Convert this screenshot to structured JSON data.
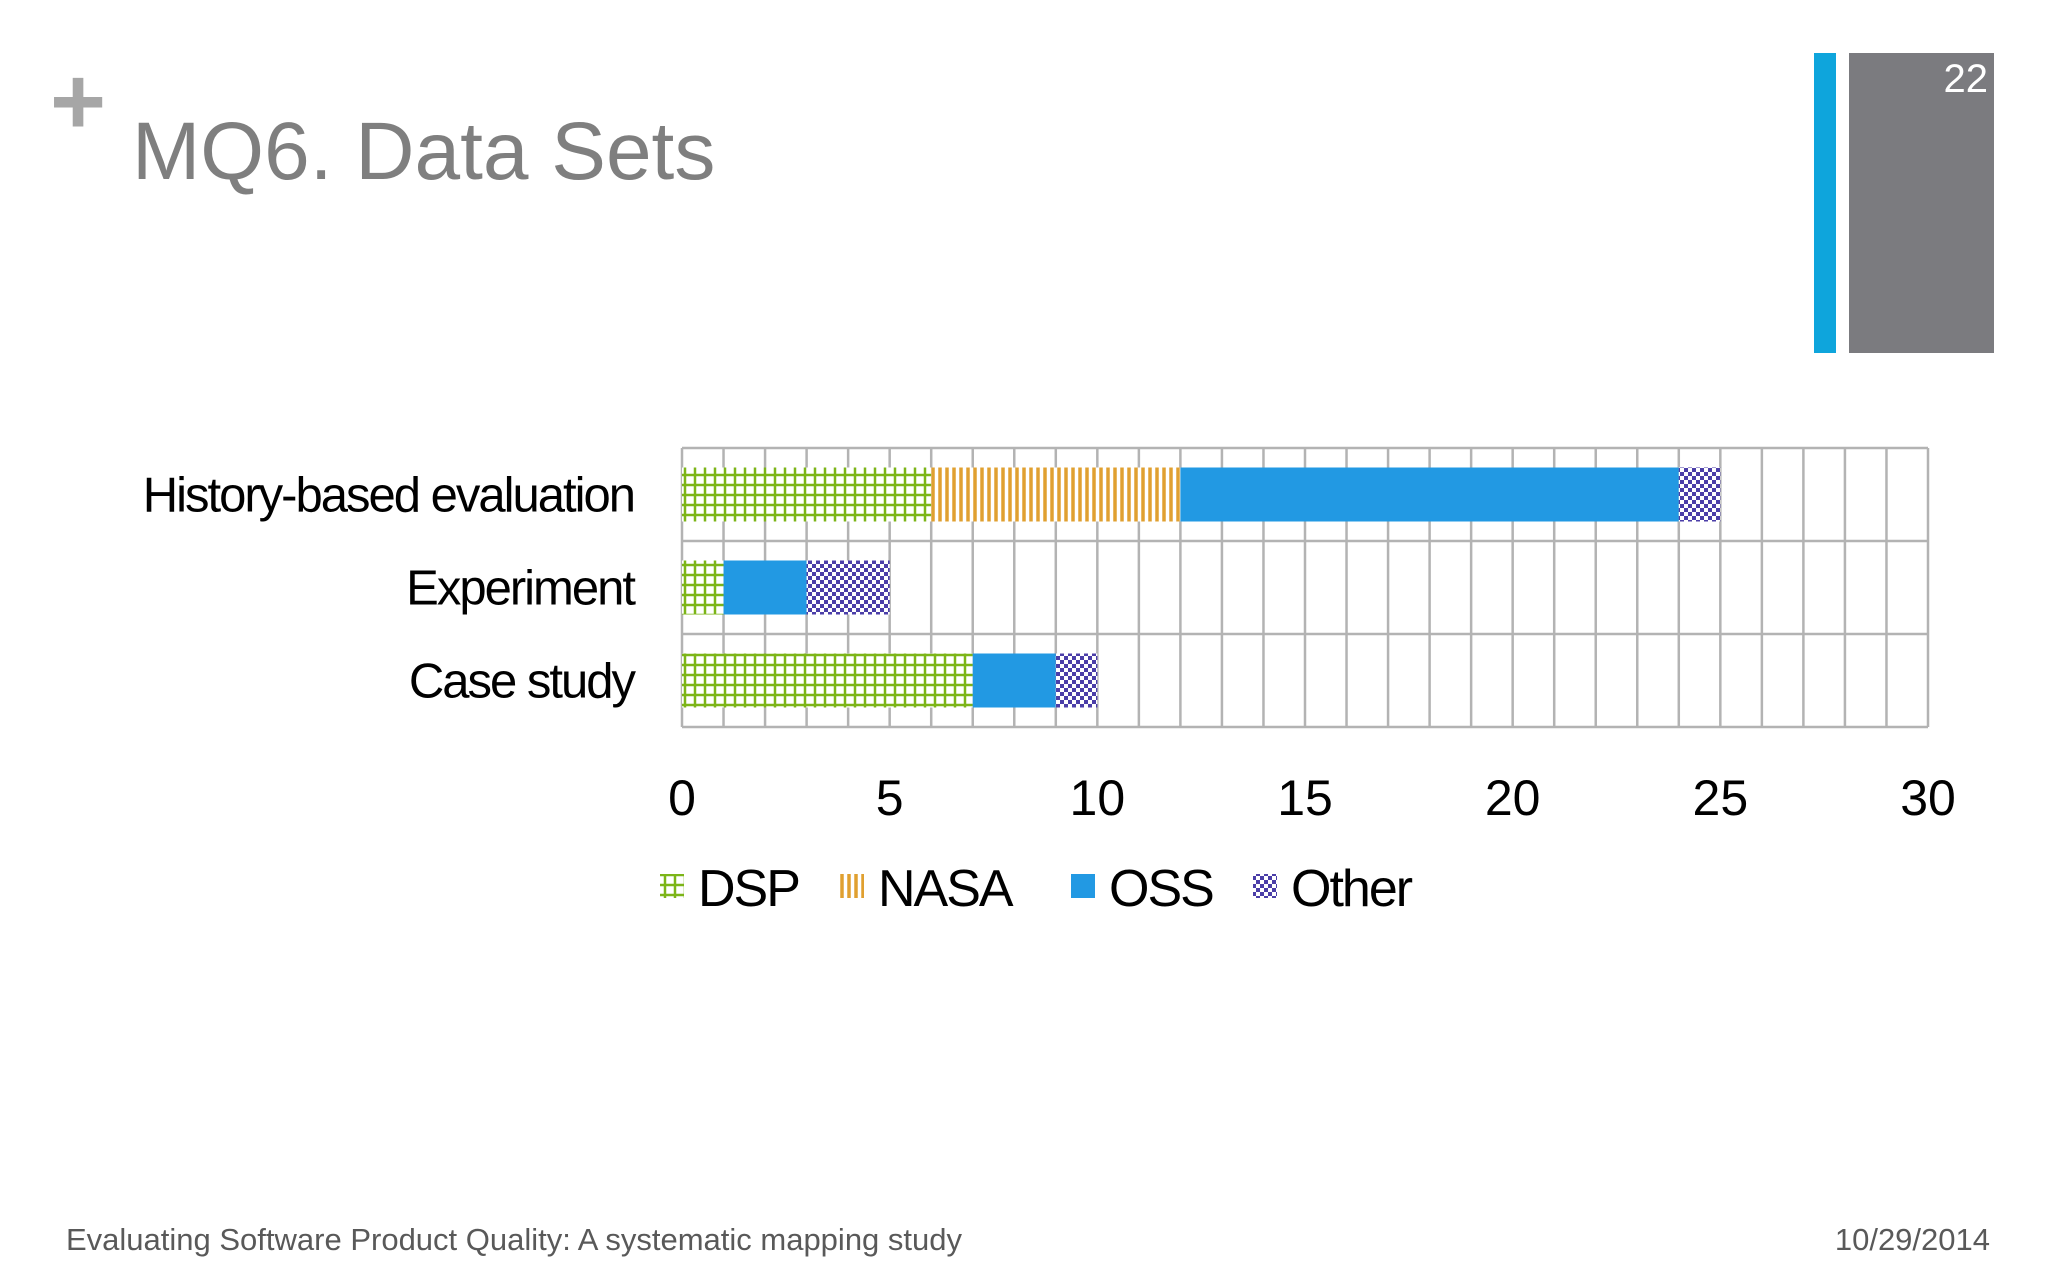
{
  "slide": {
    "plus": "+",
    "title": "MQ6. Data Sets",
    "number": "22",
    "footer": "Evaluating Software Product Quality: A systematic mapping study",
    "date": "10/29/2014"
  },
  "chart_data": {
    "type": "bar",
    "orientation": "horizontal",
    "stacked": true,
    "categories": [
      "History-based evaluation",
      "Experiment",
      "Case study"
    ],
    "series": [
      {
        "name": "DSP",
        "values": [
          6,
          1,
          7
        ],
        "color": "#7cb518",
        "pattern": "grid"
      },
      {
        "name": "NASA",
        "values": [
          6,
          0,
          0
        ],
        "color": "#e0a030",
        "pattern": "vertical-lines"
      },
      {
        "name": "OSS",
        "values": [
          12,
          2,
          2
        ],
        "color": "#2299e3",
        "pattern": "solid"
      },
      {
        "name": "Other",
        "values": [
          1,
          2,
          1
        ],
        "color": "#4b3ea8",
        "pattern": "checker"
      }
    ],
    "xlim": [
      0,
      30
    ],
    "xticks": [
      "0",
      "5",
      "10",
      "15",
      "20",
      "25",
      "30"
    ],
    "grid": true,
    "legend": "bottom"
  }
}
